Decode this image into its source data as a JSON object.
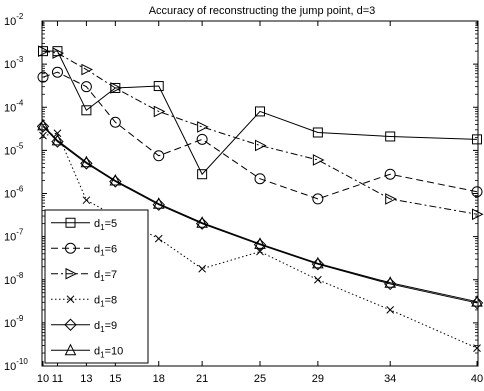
{
  "chart_data": {
    "type": "line",
    "title": "Accuracy of reconstructing the jump point, d=3",
    "xlabel": "",
    "ylabel": "",
    "x_scale": "categorical",
    "y_scale": "log",
    "categories": [
      "10",
      "11",
      "13",
      "15",
      "18",
      "21",
      "25",
      "29",
      "34",
      "40"
    ],
    "ylim": [
      1e-10,
      0.01
    ],
    "y_ticks": [
      {
        "value": 1e-10,
        "base": "10",
        "exp": "-10"
      },
      {
        "value": 1e-09,
        "base": "10",
        "exp": "-9"
      },
      {
        "value": 1e-08,
        "base": "10",
        "exp": "-8"
      },
      {
        "value": 1e-07,
        "base": "10",
        "exp": "-7"
      },
      {
        "value": 1e-06,
        "base": "10",
        "exp": "-6"
      },
      {
        "value": 1e-05,
        "base": "10",
        "exp": "-5"
      },
      {
        "value": 0.0001,
        "base": "10",
        "exp": "-4"
      },
      {
        "value": 0.001,
        "base": "10",
        "exp": "-3"
      },
      {
        "value": 0.01,
        "base": "10",
        "exp": "-2"
      }
    ],
    "grid": false,
    "legend_position": "bottom-left",
    "series": [
      {
        "name": "d1=5",
        "label_main": "d",
        "label_sub": "1",
        "label_rest": "=5",
        "marker": "square",
        "dash": "solid",
        "values": [
          0.002,
          0.002,
          8.5e-05,
          0.00028,
          0.00031,
          2.8e-06,
          8e-05,
          2.6e-05,
          2.1e-05,
          1.8e-05
        ]
      },
      {
        "name": "d1=6",
        "label_main": "d",
        "label_sub": "1",
        "label_rest": "=6",
        "marker": "circle",
        "dash": "dashed",
        "values": [
          0.0005,
          0.00065,
          0.0003,
          4.5e-05,
          7.5e-06,
          1.8e-05,
          2.2e-06,
          7.5e-07,
          2.8e-06,
          1.1e-06
        ]
      },
      {
        "name": "d1=7",
        "label_main": "d",
        "label_sub": "1",
        "label_rest": "=7",
        "marker": "triangle-right",
        "dash": "dashdot",
        "values": [
          0.002,
          0.0018,
          0.00075,
          0.00028,
          8e-05,
          3.5e-05,
          1.3e-05,
          6e-06,
          7.5e-07,
          3.3e-07
        ]
      },
      {
        "name": "d1=8",
        "label_main": "d",
        "label_sub": "1",
        "label_rest": "=8",
        "marker": "x",
        "dash": "dotted",
        "values": [
          2.2e-05,
          2.5e-05,
          7e-07,
          3e-07,
          9e-08,
          1.8e-08,
          4.5e-08,
          1e-08,
          2e-09,
          2.6e-10
        ]
      },
      {
        "name": "d1=9",
        "label_main": "d",
        "label_sub": "1",
        "label_rest": "=9",
        "marker": "diamond",
        "dash": "solid",
        "values": [
          3.6e-05,
          1.6e-05,
          5e-06,
          1.9e-06,
          5.5e-07,
          2e-07,
          6.5e-08,
          2.3e-08,
          8e-09,
          2.9e-09
        ]
      },
      {
        "name": "d1=10",
        "label_main": "d",
        "label_sub": "1",
        "label_rest": "=10",
        "marker": "triangle-up",
        "dash": "solid",
        "values": [
          3.8e-05,
          1.7e-05,
          5.3e-06,
          2e-06,
          5.8e-07,
          2.1e-07,
          6.8e-08,
          2.4e-08,
          8.5e-09,
          3.1e-09
        ]
      }
    ]
  }
}
